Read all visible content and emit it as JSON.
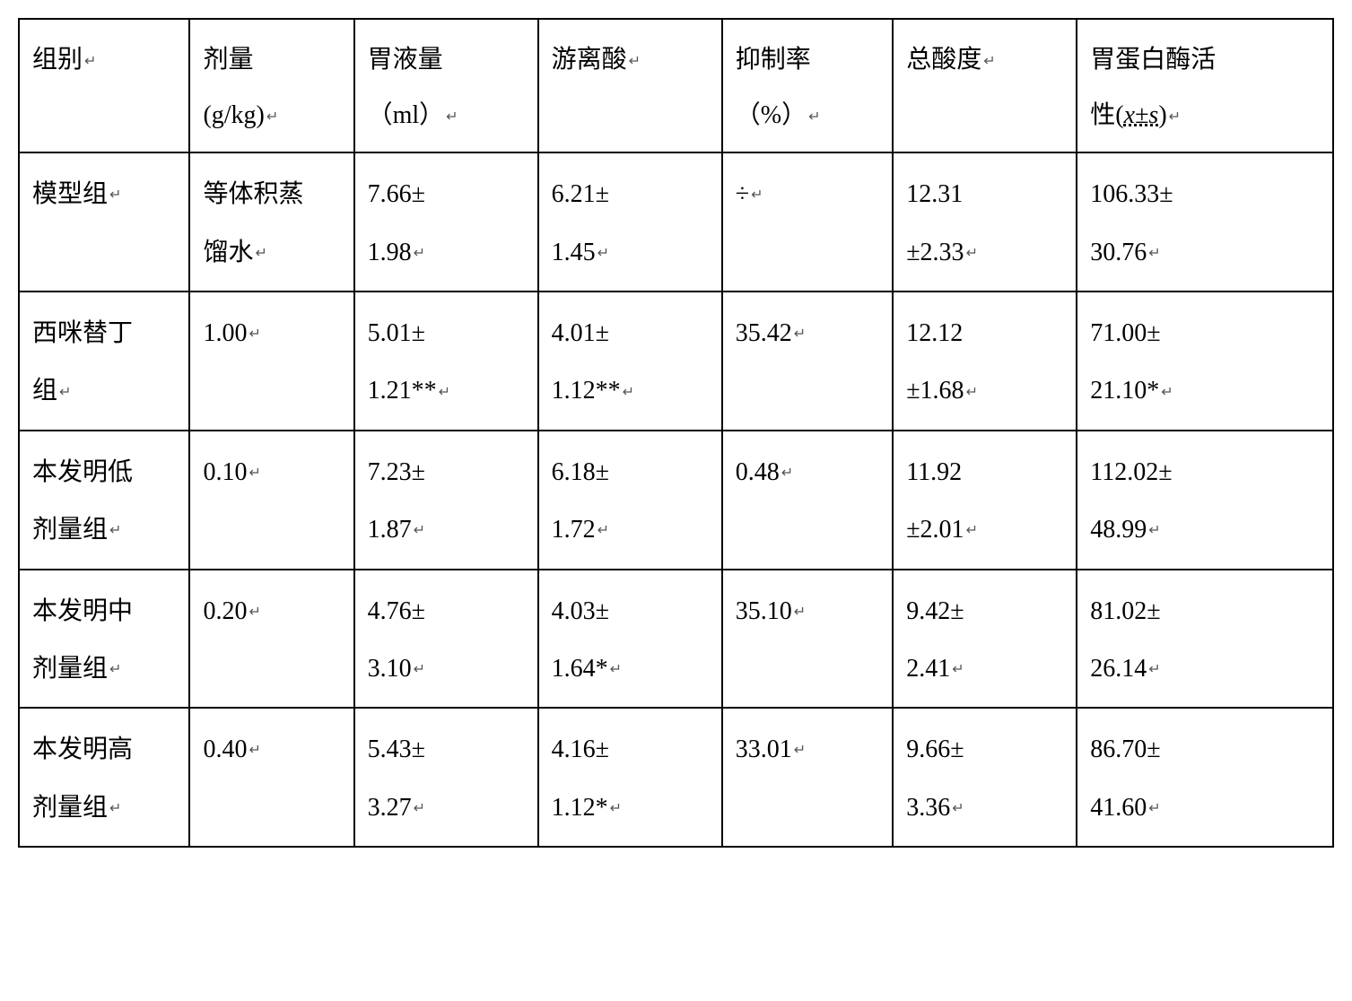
{
  "table": {
    "type": "table",
    "border_color": "#000000",
    "background_color": "#ffffff",
    "text_color": "#000000",
    "font_family": "SimSun",
    "header_fontsize": 28,
    "cell_fontsize": 28,
    "line_height": 2.2,
    "paragraph_marker": "↵",
    "columns": [
      {
        "label_line1": "组别",
        "label_line2": "",
        "width_pct": 13
      },
      {
        "label_line1": "剂量",
        "label_line2": "(g/kg)",
        "width_pct": 12.5
      },
      {
        "label_line1": "胃液量",
        "label_line2": "（ml）",
        "width_pct": 14
      },
      {
        "label_line1": "游离酸",
        "label_line2": "",
        "width_pct": 14
      },
      {
        "label_line1": "抑制率",
        "label_line2": "（%）",
        "width_pct": 13
      },
      {
        "label_line1": "总酸度",
        "label_line2": "",
        "width_pct": 14
      },
      {
        "label_line1": "胃蛋白酶活",
        "label_line2_prefix": "性(",
        "label_line2_ital": "x±s",
        "label_line2_suffix": ")",
        "width_pct": 19.5
      }
    ],
    "rows": [
      {
        "group_l1": "模型组",
        "group_l2": "",
        "dose_l1": "等体积蒸",
        "dose_l2": "馏水",
        "gastric_l1": "7.66±",
        "gastric_l2": "1.98",
        "free_l1": "6.21±",
        "free_l2": "1.45",
        "inhib_l1": "÷",
        "inhib_l2": "",
        "total_l1": "12.31",
        "total_l2": "±2.33",
        "pepsin_l1": "106.33±",
        "pepsin_l2": "30.76"
      },
      {
        "group_l1": "西咪替丁",
        "group_l2": "组",
        "dose_l1": "1.00",
        "dose_l2": "",
        "gastric_l1": "5.01±",
        "gastric_l2": "1.21**",
        "free_l1": "4.01±",
        "free_l2": "1.12**",
        "inhib_l1": "35.42",
        "inhib_l2": "",
        "total_l1": "12.12",
        "total_l2": "±1.68",
        "pepsin_l1": "71.00±",
        "pepsin_l2": "21.10*"
      },
      {
        "group_l1": "本发明低",
        "group_l2": "剂量组",
        "dose_l1": "0.10",
        "dose_l2": "",
        "gastric_l1": "7.23±",
        "gastric_l2": "1.87",
        "free_l1": "6.18±",
        "free_l2": "1.72",
        "inhib_l1": "0.48",
        "inhib_l2": "",
        "total_l1": "11.92",
        "total_l2": "±2.01",
        "pepsin_l1": "112.02±",
        "pepsin_l2": "48.99"
      },
      {
        "group_l1": "本发明中",
        "group_l2": "剂量组",
        "dose_l1": "0.20",
        "dose_l2": "",
        "gastric_l1": "4.76±",
        "gastric_l2": "3.10",
        "free_l1": "4.03±",
        "free_l2": "1.64*",
        "inhib_l1": "35.10",
        "inhib_l2": "",
        "total_l1": "9.42±",
        "total_l2": "2.41",
        "pepsin_l1": "81.02±",
        "pepsin_l2": "26.14"
      },
      {
        "group_l1": "本发明高",
        "group_l2": "剂量组",
        "dose_l1": "0.40",
        "dose_l2": "",
        "gastric_l1": "5.43±",
        "gastric_l2": "3.27",
        "free_l1": "4.16±",
        "free_l2": "1.12*",
        "inhib_l1": "33.01",
        "inhib_l2": "",
        "total_l1": "9.66±",
        "total_l2": "3.36",
        "pepsin_l1": "86.70±",
        "pepsin_l2": "41.60"
      }
    ]
  }
}
